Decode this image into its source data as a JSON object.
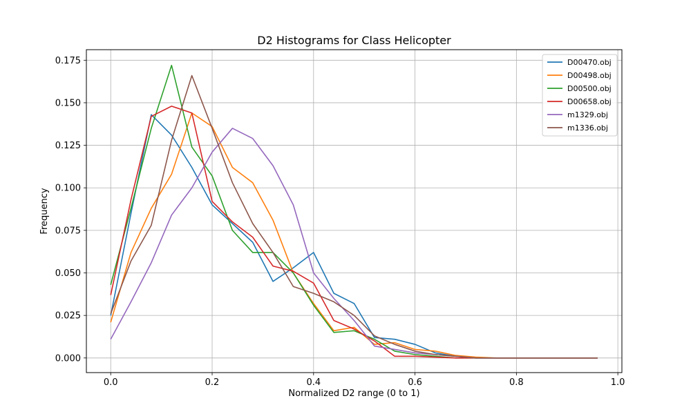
{
  "chart_data": {
    "type": "line",
    "title": "D2 Histograms for Class Helicopter",
    "xlabel": "Normalized D2 range (0 to 1)",
    "ylabel": "Frequency",
    "xlim": [
      -0.048,
      1.008
    ],
    "ylim": [
      -0.0086,
      0.1812
    ],
    "xticks": [
      0.0,
      0.2,
      0.4,
      0.6,
      0.8,
      1.0
    ],
    "xtick_labels": [
      "0.0",
      "0.2",
      "0.4",
      "0.6",
      "0.8",
      "1.0"
    ],
    "yticks": [
      0.0,
      0.025,
      0.05,
      0.075,
      0.1,
      0.125,
      0.15,
      0.175
    ],
    "ytick_labels": [
      "0.000",
      "0.025",
      "0.050",
      "0.075",
      "0.100",
      "0.125",
      "0.150",
      "0.175"
    ],
    "grid": true,
    "legend_position": "top-right",
    "x": [
      0.0,
      0.04,
      0.08,
      0.12,
      0.16,
      0.2,
      0.24,
      0.28,
      0.32,
      0.36,
      0.4,
      0.44,
      0.48,
      0.52,
      0.56,
      0.6,
      0.64,
      0.68,
      0.72,
      0.76,
      0.8,
      0.84,
      0.88,
      0.92,
      0.96
    ],
    "series": [
      {
        "name": "D00470.obj",
        "color": "#1f77b4",
        "values": [
          0.025,
          0.085,
          0.143,
          0.131,
          0.112,
          0.09,
          0.079,
          0.068,
          0.045,
          0.053,
          0.062,
          0.038,
          0.032,
          0.012,
          0.011,
          0.008,
          0.003,
          0.001,
          0.0,
          0.0,
          0.0,
          0.0,
          0.0,
          0.0,
          0.0
        ]
      },
      {
        "name": "D00498.obj",
        "color": "#ff7f0e",
        "values": [
          0.021,
          0.062,
          0.088,
          0.108,
          0.144,
          0.136,
          0.112,
          0.103,
          0.081,
          0.05,
          0.032,
          0.016,
          0.018,
          0.008,
          0.009,
          0.005,
          0.004,
          0.0015,
          0.0005,
          0.0,
          0.0,
          0.0,
          0.0,
          0.0,
          0.0
        ]
      },
      {
        "name": "D00500.obj",
        "color": "#2ca02c",
        "values": [
          0.043,
          0.088,
          0.135,
          0.172,
          0.124,
          0.107,
          0.075,
          0.062,
          0.062,
          0.05,
          0.031,
          0.015,
          0.016,
          0.011,
          0.004,
          0.002,
          0.001,
          0.0,
          0.0,
          0.0,
          0.0,
          0.0,
          0.0,
          0.0,
          0.0
        ]
      },
      {
        "name": "D00658.obj",
        "color": "#d62728",
        "values": [
          0.037,
          0.093,
          0.142,
          0.148,
          0.144,
          0.092,
          0.08,
          0.071,
          0.054,
          0.051,
          0.044,
          0.022,
          0.017,
          0.01,
          0.001,
          0.001,
          0.0005,
          0.0,
          0.0,
          0.0,
          0.0,
          0.0,
          0.0,
          0.0,
          0.0
        ]
      },
      {
        "name": "m1329.obj",
        "color": "#9467bd",
        "values": [
          0.011,
          0.033,
          0.056,
          0.084,
          0.1,
          0.121,
          0.135,
          0.129,
          0.113,
          0.09,
          0.05,
          0.035,
          0.022,
          0.007,
          0.005,
          0.003,
          0.002,
          0.001,
          0.0,
          0.0,
          0.0,
          0.0,
          0.0,
          0.0,
          0.0
        ]
      },
      {
        "name": "m1336.obj",
        "color": "#8c564b",
        "values": [
          0.026,
          0.057,
          0.078,
          0.128,
          0.166,
          0.135,
          0.103,
          0.079,
          0.062,
          0.042,
          0.038,
          0.033,
          0.025,
          0.013,
          0.008,
          0.004,
          0.002,
          0.001,
          0.0,
          0.0,
          0.0,
          0.0,
          0.0,
          0.0,
          0.0
        ]
      }
    ]
  }
}
